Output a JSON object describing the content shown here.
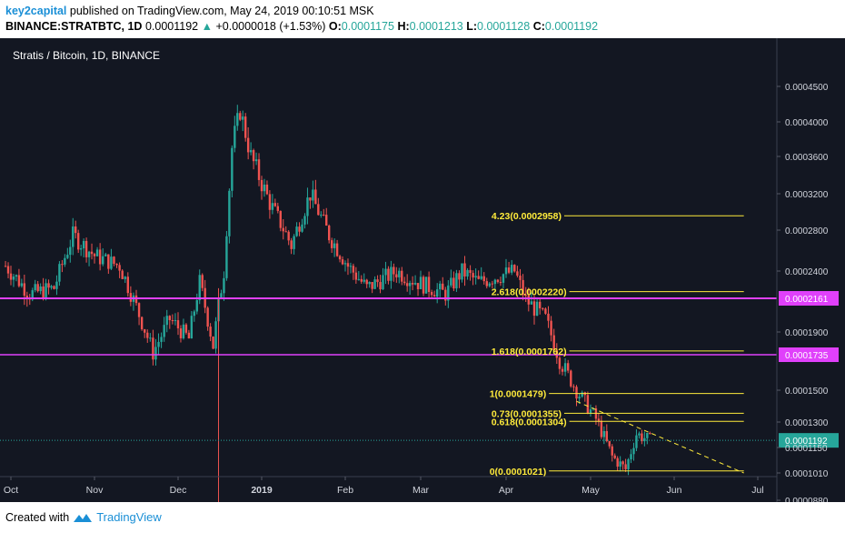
{
  "header": {
    "author": "key2capital",
    "published": "published on TradingView.com, May 24, 2019 00:10:51 MSK",
    "symbol": "BINANCE:STRATBTC, 1D",
    "last": "0.0001192",
    "change": "+0.0000018 (+1.53%)",
    "o_label": "O:",
    "o": "0.0001175",
    "h_label": "H:",
    "h": "0.0001213",
    "l_label": "L:",
    "l": "0.0001128",
    "c_label": "C:",
    "c": "0.0001192"
  },
  "footer": {
    "created_with": "Created with",
    "brand": "TradingView"
  },
  "colors": {
    "background": "#131722",
    "up": "#26a69a",
    "down": "#ef5350",
    "fib": "#ffeb3b",
    "level": "#e040fb",
    "last": "#26a69a"
  },
  "chart_data": {
    "type": "candlestick",
    "title": "Stratis / Bitcoin, 1D, BINANCE",
    "y_ticks": [
      "0.0004500",
      "0.0004000",
      "0.0003600",
      "0.0003200",
      "0.0002800",
      "0.0002400",
      "0.0002161",
      "0.0001900",
      "0.0001735",
      "0.0001500",
      "0.0001300",
      "0.0001192",
      "0.0001150",
      "0.0001010",
      "0.0000880"
    ],
    "ylim": [
      8.8e-05,
      0.00045
    ],
    "x_ticks": [
      "Oct",
      "Nov",
      "Dec",
      "2019",
      "Feb",
      "Mar",
      "Apr",
      "May",
      "Jun",
      "Jul"
    ],
    "x_tick_dates": [
      "2018-10-01",
      "2018-11-01",
      "2018-12-01",
      "2019-01-01",
      "2019-02-01",
      "2019-03-01",
      "2019-04-01",
      "2019-05-01",
      "2019-06-01",
      "2019-07-01"
    ],
    "price_series": [
      {
        "date": "2018-09-29",
        "price": 0.000245
      },
      {
        "date": "2018-10-08",
        "price": 0.00022
      },
      {
        "date": "2018-10-17",
        "price": 0.000225
      },
      {
        "date": "2018-10-24",
        "price": 0.000275
      },
      {
        "date": "2018-11-01",
        "price": 0.000255
      },
      {
        "date": "2018-11-10",
        "price": 0.000245
      },
      {
        "date": "2018-11-15",
        "price": 0.000215
      },
      {
        "date": "2018-11-22",
        "price": 0.000175
      },
      {
        "date": "2018-11-28",
        "price": 0.0002
      },
      {
        "date": "2018-12-05",
        "price": 0.000185
      },
      {
        "date": "2018-12-09",
        "price": 0.00023
      },
      {
        "date": "2018-12-14",
        "price": 0.00018
      },
      {
        "date": "2018-12-18",
        "price": 0.00024
      },
      {
        "date": "2018-12-21",
        "price": 0.00037
      },
      {
        "date": "2018-12-24",
        "price": 0.000415
      },
      {
        "date": "2018-12-28",
        "price": 0.00036
      },
      {
        "date": "2019-01-04",
        "price": 0.00031
      },
      {
        "date": "2019-01-12",
        "price": 0.000265
      },
      {
        "date": "2019-01-19",
        "price": 0.00032
      },
      {
        "date": "2019-01-26",
        "price": 0.000275
      },
      {
        "date": "2019-02-02",
        "price": 0.000245
      },
      {
        "date": "2019-02-09",
        "price": 0.000225
      },
      {
        "date": "2019-02-20",
        "price": 0.00024
      },
      {
        "date": "2019-02-28",
        "price": 0.00023
      },
      {
        "date": "2019-03-10",
        "price": 0.00022
      },
      {
        "date": "2019-03-16",
        "price": 0.00024
      },
      {
        "date": "2019-03-22",
        "price": 0.00023
      },
      {
        "date": "2019-03-28",
        "price": 0.000235
      },
      {
        "date": "2019-04-04",
        "price": 0.00024
      },
      {
        "date": "2019-04-08",
        "price": 0.000215
      },
      {
        "date": "2019-04-15",
        "price": 0.0002
      },
      {
        "date": "2019-04-20",
        "price": 0.00017
      },
      {
        "date": "2019-04-26",
        "price": 0.00015
      },
      {
        "date": "2019-05-03",
        "price": 0.000132
      },
      {
        "date": "2019-05-09",
        "price": 0.00011
      },
      {
        "date": "2019-05-14",
        "price": 0.000103
      },
      {
        "date": "2019-05-18",
        "price": 0.000123
      },
      {
        "date": "2019-05-23",
        "price": 0.0001192
      }
    ],
    "horizontal_levels": [
      {
        "value": 0.0002161,
        "label": "0.0002161"
      },
      {
        "value": 0.0001735,
        "label": "0.0001735"
      }
    ],
    "last_price": {
      "value": 0.0001192,
      "label": "0.0001192"
    },
    "fibonacci": {
      "start_date": "2019-04-01",
      "end_date": "2019-06-26",
      "levels": [
        {
          "value": 0.0002958,
          "label": "4.23(0.0002958)"
        },
        {
          "value": 0.000222,
          "label": "2.618(0.0002220)"
        },
        {
          "value": 0.0001762,
          "label": "1.618(0.0001762)"
        },
        {
          "value": 0.0001479,
          "label": "1(0.0001479)"
        },
        {
          "value": 0.0001355,
          "label": "0.73(0.0001355)"
        },
        {
          "value": 0.0001304,
          "label": "0.618(0.0001304)"
        },
        {
          "value": 0.0001021,
          "label": "0(0.0001021)"
        }
      ]
    },
    "trendline": [
      {
        "date": "2019-04-26",
        "price": 0.000143
      },
      {
        "date": "2019-06-26",
        "price": 0.000101
      }
    ]
  }
}
